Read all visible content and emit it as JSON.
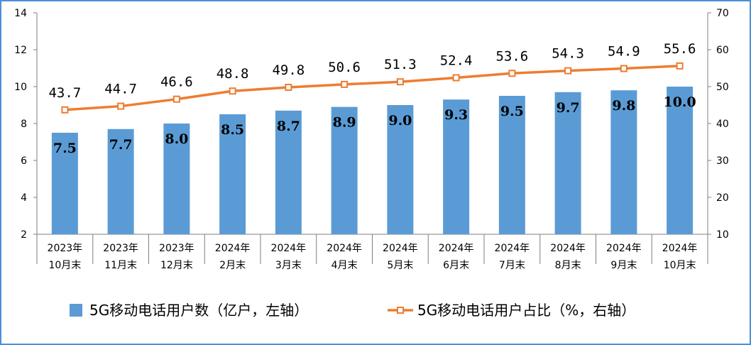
{
  "chart_data": {
    "type": "bar",
    "categories": [
      [
        "2023年",
        "10月末"
      ],
      [
        "2023年",
        "11月末"
      ],
      [
        "2023年",
        "12月末"
      ],
      [
        "2024年",
        "2月末"
      ],
      [
        "2024年",
        "3月末"
      ],
      [
        "2024年",
        "4月末"
      ],
      [
        "2024年",
        "5月末"
      ],
      [
        "2024年",
        "6月末"
      ],
      [
        "2024年",
        "7月末"
      ],
      [
        "2024年",
        "8月末"
      ],
      [
        "2024年",
        "9月末"
      ],
      [
        "2024年",
        "10月末"
      ]
    ],
    "series": [
      {
        "name": "5G移动电话用户数（亿户，左轴）",
        "type": "bar",
        "axis": "left",
        "color": "#5b9bd5",
        "values": [
          7.5,
          7.7,
          8.0,
          8.5,
          8.7,
          8.9,
          9.0,
          9.3,
          9.5,
          9.7,
          9.8,
          10.0
        ],
        "labels": [
          "7.5",
          "7.7",
          "8.0",
          "8.5",
          "8.7",
          "8.9",
          "9.0",
          "9.3",
          "9.5",
          "9.7",
          "9.8",
          "10.0"
        ]
      },
      {
        "name": "5G移动电话用户占比（%，右轴）",
        "type": "line",
        "axis": "right",
        "color": "#ed7d31",
        "values": [
          43.7,
          44.7,
          46.6,
          48.8,
          49.8,
          50.6,
          51.3,
          52.4,
          53.6,
          54.3,
          54.9,
          55.6
        ],
        "labels": [
          "43.7",
          "44.7",
          "46.6",
          "48.8",
          "49.8",
          "50.6",
          "51.3",
          "52.4",
          "53.6",
          "54.3",
          "54.9",
          "55.6"
        ]
      }
    ],
    "y_left": {
      "min": 2,
      "max": 14,
      "ticks": [
        "2",
        "4",
        "6",
        "8",
        "10",
        "12",
        "14"
      ]
    },
    "y_right": {
      "min": 10,
      "max": 70,
      "ticks": [
        "10",
        "20",
        "30",
        "40",
        "50",
        "60",
        "70"
      ]
    },
    "grid": false,
    "legend": "bottom"
  }
}
